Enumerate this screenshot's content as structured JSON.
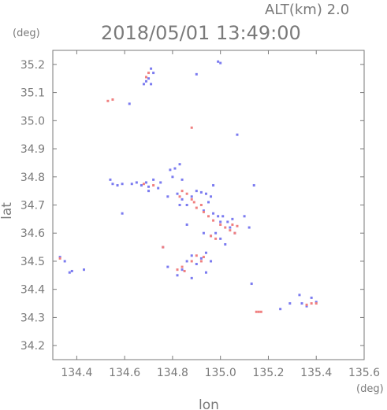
{
  "chart_data": {
    "type": "scatter",
    "title": "2018/05/01 13:49:00",
    "subtitle": "ALT(km) 2.0",
    "xlabel": "lon",
    "ylabel": "lat",
    "x_unit": "(deg)",
    "y_unit": "(deg)",
    "xlim": [
      134.3,
      135.6
    ],
    "ylim": [
      34.15,
      35.25
    ],
    "x_ticks": [
      "134.4",
      "134.6",
      "134.8",
      "135.0",
      "135.2",
      "135.4",
      "135.6"
    ],
    "y_ticks": [
      "34.2",
      "34.3",
      "34.4",
      "34.5",
      "34.6",
      "34.7",
      "34.8",
      "34.9",
      "35.0",
      "35.1",
      "35.2"
    ],
    "grid": false,
    "colors": {
      "positive": "#f08080",
      "negative": "#7b7bf0",
      "axis": "#7a7a7a"
    },
    "series": [
      {
        "color": "#7b7bf0",
        "points": [
          [
            134.99,
            35.21
          ],
          [
            135.0,
            35.205
          ],
          [
            134.9,
            35.165
          ],
          [
            134.71,
            35.185
          ],
          [
            134.72,
            35.17
          ],
          [
            134.7,
            35.15
          ],
          [
            134.69,
            35.14
          ],
          [
            134.71,
            35.13
          ],
          [
            134.68,
            35.13
          ],
          [
            134.62,
            35.06
          ],
          [
            135.07,
            34.95
          ],
          [
            134.54,
            34.79
          ],
          [
            134.55,
            34.775
          ],
          [
            134.57,
            34.77
          ],
          [
            134.59,
            34.775
          ],
          [
            134.63,
            34.775
          ],
          [
            134.65,
            34.78
          ],
          [
            134.67,
            34.77
          ],
          [
            134.69,
            34.78
          ],
          [
            134.7,
            34.765
          ],
          [
            134.72,
            34.79
          ],
          [
            134.74,
            34.76
          ],
          [
            134.79,
            34.825
          ],
          [
            134.81,
            34.83
          ],
          [
            134.83,
            34.845
          ],
          [
            134.8,
            34.8
          ],
          [
            134.84,
            34.79
          ],
          [
            134.82,
            34.74
          ],
          [
            134.84,
            34.72
          ],
          [
            134.83,
            34.7
          ],
          [
            134.86,
            34.7
          ],
          [
            134.88,
            34.73
          ],
          [
            134.9,
            34.75
          ],
          [
            134.92,
            34.745
          ],
          [
            134.94,
            34.74
          ],
          [
            134.96,
            34.73
          ],
          [
            134.95,
            34.71
          ],
          [
            134.93,
            34.68
          ],
          [
            134.97,
            34.67
          ],
          [
            134.99,
            34.66
          ],
          [
            135.01,
            34.66
          ],
          [
            135.03,
            34.64
          ],
          [
            135.05,
            34.65
          ],
          [
            134.98,
            34.6
          ],
          [
            134.96,
            34.59
          ],
          [
            135.0,
            34.58
          ],
          [
            135.02,
            34.56
          ],
          [
            134.94,
            34.53
          ],
          [
            134.92,
            34.51
          ],
          [
            134.9,
            34.49
          ],
          [
            134.88,
            34.52
          ],
          [
            134.86,
            34.5
          ],
          [
            134.84,
            34.47
          ],
          [
            134.82,
            34.45
          ],
          [
            134.88,
            34.44
          ],
          [
            134.94,
            34.46
          ],
          [
            134.96,
            34.5
          ],
          [
            134.76,
            34.55
          ],
          [
            134.78,
            34.48
          ],
          [
            134.59,
            34.67
          ],
          [
            134.33,
            34.515
          ],
          [
            134.35,
            34.5
          ],
          [
            134.37,
            34.46
          ],
          [
            134.38,
            34.465
          ],
          [
            134.43,
            34.47
          ],
          [
            134.86,
            34.63
          ],
          [
            135.1,
            34.66
          ],
          [
            135.13,
            34.42
          ],
          [
            135.25,
            34.33
          ],
          [
            135.29,
            34.35
          ],
          [
            135.33,
            34.38
          ],
          [
            135.34,
            34.35
          ],
          [
            135.36,
            34.34
          ],
          [
            135.38,
            34.37
          ],
          [
            135.4,
            34.355
          ],
          [
            135.14,
            34.77
          ],
          [
            135.12,
            34.62
          ],
          [
            135.04,
            34.62
          ],
          [
            135.06,
            34.6
          ],
          [
            134.93,
            34.6
          ],
          [
            135.0,
            34.64
          ],
          [
            134.97,
            34.77
          ],
          [
            134.75,
            34.78
          ],
          [
            134.7,
            34.75
          ],
          [
            134.78,
            34.73
          ]
        ]
      },
      {
        "color": "#f08080",
        "points": [
          [
            134.7,
            35.17
          ],
          [
            134.69,
            35.155
          ],
          [
            134.55,
            35.075
          ],
          [
            134.53,
            35.07
          ],
          [
            134.88,
            34.975
          ],
          [
            134.84,
            34.75
          ],
          [
            134.86,
            34.74
          ],
          [
            134.83,
            34.73
          ],
          [
            134.88,
            34.72
          ],
          [
            134.72,
            34.77
          ],
          [
            134.68,
            34.775
          ],
          [
            134.89,
            34.71
          ],
          [
            134.92,
            34.7
          ],
          [
            134.9,
            34.69
          ],
          [
            134.93,
            34.675
          ],
          [
            134.95,
            34.66
          ],
          [
            134.97,
            34.645
          ],
          [
            135.0,
            34.63
          ],
          [
            135.02,
            34.62
          ],
          [
            135.04,
            34.61
          ],
          [
            135.06,
            34.6
          ],
          [
            135.05,
            34.63
          ],
          [
            135.07,
            34.625
          ],
          [
            134.96,
            34.59
          ],
          [
            134.98,
            34.58
          ],
          [
            134.9,
            34.52
          ],
          [
            134.92,
            34.5
          ],
          [
            134.88,
            34.5
          ],
          [
            134.93,
            34.515
          ],
          [
            134.84,
            34.48
          ],
          [
            134.85,
            34.465
          ],
          [
            134.82,
            34.47
          ],
          [
            134.76,
            34.55
          ],
          [
            135.17,
            34.32
          ],
          [
            135.16,
            34.32
          ],
          [
            135.15,
            34.32
          ],
          [
            135.38,
            34.35
          ],
          [
            135.4,
            34.35
          ],
          [
            135.36,
            34.345
          ],
          [
            134.33,
            34.51
          ]
        ]
      }
    ]
  }
}
